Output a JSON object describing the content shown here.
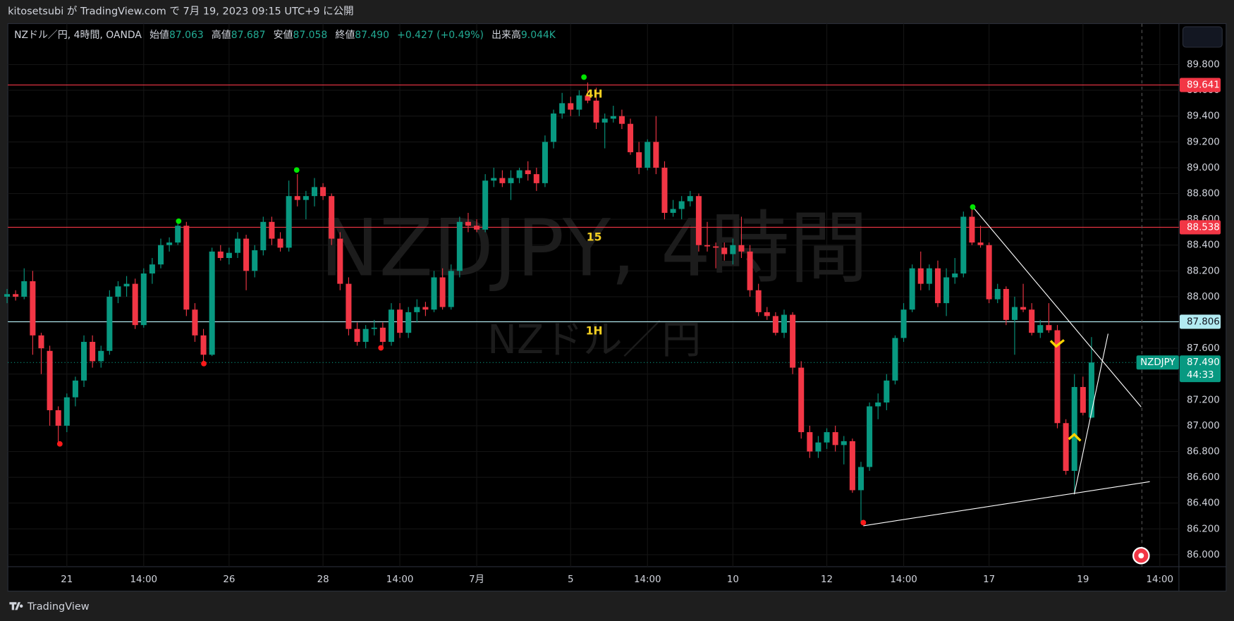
{
  "header": {
    "publisher": "kitosetsubi が TradingView.com で 7月 19, 2023 09:15 UTC+9 に公開"
  },
  "footer": {
    "brand": "TradingView"
  },
  "chart_data": {
    "type": "candlestick",
    "symbol_line": "NZドル／円, 4時間, OANDA",
    "ohlc_legend": [
      {
        "label": "始値",
        "value": "87.063"
      },
      {
        "label": "高値",
        "value": "87.687"
      },
      {
        "label": "安値",
        "value": "87.058"
      },
      {
        "label": "終値",
        "value": "87.490"
      }
    ],
    "change": "+0.427 (+0.49%)",
    "volume_label": "出来高",
    "volume": "9.044K",
    "watermark": "NZDJPY, 4時間",
    "watermark_sub": "NZドル／円",
    "annotations": [
      "4H",
      "15",
      "1H"
    ],
    "categories": [
      null,
      null,
      null,
      null,
      null,
      null,
      null,
      "21",
      null,
      null,
      null,
      null,
      null,
      null,
      null,
      null,
      "14:00",
      null,
      null,
      null,
      null,
      null,
      null,
      null,
      null,
      null,
      "26",
      null,
      null,
      null,
      null,
      null,
      null,
      null,
      null,
      null,
      null,
      "28",
      null,
      null,
      null,
      null,
      null,
      null,
      null,
      null,
      "14:00",
      null,
      null,
      null,
      null,
      null,
      null,
      null,
      null,
      "7月",
      null,
      null,
      null,
      null,
      null,
      null,
      null,
      null,
      null,
      null,
      "5",
      null,
      null,
      null,
      null,
      null,
      null,
      null,
      null,
      "14:00",
      null,
      null,
      null,
      null,
      null,
      null,
      null,
      null,
      null,
      "10",
      null,
      null,
      null,
      null,
      null,
      null,
      null,
      null,
      null,
      null,
      "12",
      null,
      null,
      null,
      null,
      null,
      null,
      null,
      null,
      "14:00",
      null,
      null,
      null,
      null,
      null,
      null,
      null,
      null,
      null,
      "17",
      null,
      null,
      null,
      null,
      null,
      null,
      null,
      null,
      null,
      null,
      "19",
      null,
      null,
      null,
      null,
      null,
      null,
      null,
      null,
      "14:00"
    ],
    "open": [
      88.0,
      88.02,
      88.0,
      88.12,
      87.7,
      87.58,
      87.12,
      87.0,
      87.22,
      87.35,
      87.65,
      87.5,
      87.58,
      88.0,
      88.08,
      88.1,
      87.78,
      88.18,
      88.25,
      88.4,
      88.42,
      88.55,
      87.9,
      87.7,
      87.55,
      88.35,
      88.3,
      88.34,
      88.45,
      88.2,
      88.36,
      88.58,
      88.45,
      88.38,
      88.78,
      88.75,
      88.78,
      88.85,
      88.78,
      88.45,
      88.1,
      87.75,
      87.65,
      87.75,
      87.76,
      87.65,
      87.9,
      87.72,
      87.88,
      87.92,
      87.9,
      88.15,
      87.92,
      88.2,
      88.58,
      88.55,
      88.52,
      88.9,
      88.92,
      88.88,
      88.92,
      88.98,
      88.95,
      88.88,
      89.2,
      89.42,
      89.5,
      89.45,
      89.56,
      89.52,
      89.35,
      89.38,
      89.4,
      89.34,
      89.12,
      89.0,
      89.2,
      89.0,
      88.65,
      88.68,
      88.74,
      88.78,
      88.4,
      88.39,
      88.38,
      88.33,
      88.4,
      88.35,
      88.05,
      87.88,
      87.85,
      87.72,
      87.86,
      87.45,
      86.95,
      86.8,
      86.87,
      86.95,
      86.85,
      86.88,
      86.5,
      86.68,
      87.15,
      87.18,
      87.35,
      87.68,
      87.9,
      88.22,
      88.1,
      88.22,
      87.95,
      88.15,
      88.18,
      88.62,
      88.42,
      88.4,
      87.98,
      88.06,
      87.82,
      87.92,
      87.9,
      87.72,
      87.78,
      87.74,
      87.02,
      86.65,
      87.3,
      87.063,
      null,
      null,
      null,
      null,
      null,
      null,
      null,
      null
    ],
    "high": [
      88.06,
      88.05,
      88.22,
      88.2,
      87.72,
      87.62,
      87.15,
      87.25,
      87.38,
      87.7,
      87.7,
      87.62,
      88.05,
      88.12,
      88.16,
      88.14,
      88.22,
      88.3,
      88.45,
      88.46,
      88.6,
      88.58,
      87.95,
      87.75,
      88.38,
      88.4,
      88.38,
      88.5,
      88.48,
      88.4,
      88.62,
      88.62,
      88.5,
      88.9,
      88.95,
      88.82,
      88.92,
      88.88,
      88.8,
      88.5,
      88.15,
      87.8,
      87.78,
      87.82,
      87.8,
      87.95,
      87.95,
      87.92,
      87.98,
      87.96,
      88.2,
      88.22,
      88.25,
      88.62,
      88.65,
      88.6,
      88.95,
      89.0,
      88.98,
      88.98,
      89.0,
      89.05,
      89.0,
      89.25,
      89.45,
      89.58,
      89.55,
      89.6,
      89.66,
      89.62,
      89.42,
      89.48,
      89.45,
      89.38,
      89.2,
      89.22,
      89.4,
      89.05,
      88.75,
      88.78,
      88.82,
      88.8,
      88.58,
      88.42,
      88.42,
      88.45,
      88.62,
      88.4,
      88.1,
      87.92,
      87.88,
      87.9,
      87.88,
      87.5,
      87.0,
      86.92,
      86.98,
      87.0,
      86.92,
      86.9,
      86.72,
      87.18,
      87.25,
      87.4,
      87.7,
      87.95,
      88.25,
      88.35,
      88.25,
      88.28,
      88.22,
      88.3,
      88.66,
      88.68,
      88.55,
      88.42,
      88.1,
      88.08,
      88.0,
      88.1,
      87.95,
      87.82,
      87.95,
      87.78,
      87.05,
      87.4,
      87.38,
      87.687,
      null,
      null,
      null,
      null,
      null,
      null,
      null,
      null
    ],
    "low": [
      87.95,
      87.97,
      87.98,
      87.55,
      87.4,
      87.0,
      86.86,
      86.95,
      87.15,
      87.3,
      87.45,
      87.45,
      87.55,
      87.95,
      88.0,
      87.75,
      87.76,
      88.1,
      88.22,
      88.35,
      88.4,
      87.85,
      87.65,
      87.48,
      87.54,
      88.28,
      88.25,
      88.3,
      88.05,
      88.15,
      88.32,
      88.4,
      88.35,
      88.35,
      88.7,
      88.6,
      88.7,
      88.75,
      88.4,
      88.05,
      87.7,
      87.62,
      87.6,
      87.7,
      87.6,
      87.62,
      87.68,
      87.68,
      87.8,
      87.85,
      87.88,
      87.9,
      87.9,
      88.15,
      88.5,
      88.5,
      88.5,
      88.85,
      88.85,
      88.75,
      88.88,
      88.9,
      88.82,
      88.85,
      89.15,
      89.38,
      89.4,
      89.4,
      89.5,
      89.3,
      89.15,
      89.35,
      89.3,
      89.1,
      88.95,
      88.98,
      88.95,
      88.6,
      88.62,
      88.6,
      88.7,
      88.35,
      88.35,
      88.22,
      88.28,
      88.25,
      88.3,
      88.0,
      87.85,
      87.82,
      87.7,
      87.68,
      87.4,
      86.9,
      86.75,
      86.75,
      86.82,
      86.8,
      86.7,
      86.48,
      86.24,
      86.65,
      87.05,
      87.12,
      87.32,
      87.65,
      87.88,
      88.05,
      88.05,
      87.92,
      87.85,
      88.1,
      88.15,
      88.4,
      88.38,
      87.95,
      87.95,
      87.78,
      87.55,
      87.88,
      87.7,
      87.68,
      87.72,
      86.98,
      86.62,
      86.48,
      87.08,
      87.058,
      null,
      null,
      null,
      null,
      null,
      null,
      null,
      null
    ],
    "close": [
      88.02,
      88.0,
      88.12,
      87.7,
      87.6,
      87.12,
      87.0,
      87.22,
      87.35,
      87.65,
      87.5,
      87.58,
      88.0,
      88.08,
      88.1,
      87.78,
      88.18,
      88.25,
      88.4,
      88.42,
      88.55,
      87.9,
      87.7,
      87.55,
      88.35,
      88.3,
      88.34,
      88.45,
      88.2,
      88.36,
      88.58,
      88.45,
      88.38,
      88.78,
      88.75,
      88.78,
      88.85,
      88.78,
      88.45,
      88.1,
      87.75,
      87.65,
      87.75,
      87.76,
      87.65,
      87.9,
      87.72,
      87.88,
      87.92,
      87.9,
      88.15,
      87.92,
      88.2,
      88.58,
      88.55,
      88.52,
      88.9,
      88.92,
      88.88,
      88.92,
      88.98,
      88.95,
      88.88,
      89.2,
      89.42,
      89.5,
      89.45,
      89.56,
      89.52,
      89.35,
      89.38,
      89.4,
      89.34,
      89.12,
      89.0,
      89.2,
      89.0,
      88.65,
      88.68,
      88.74,
      88.78,
      88.4,
      88.39,
      88.38,
      88.33,
      88.4,
      88.35,
      88.05,
      87.88,
      87.85,
      87.72,
      87.86,
      87.45,
      86.95,
      86.8,
      86.87,
      86.95,
      86.85,
      86.88,
      86.5,
      86.68,
      87.15,
      87.18,
      87.35,
      87.68,
      87.9,
      88.22,
      88.1,
      88.22,
      87.95,
      88.15,
      88.18,
      88.62,
      88.42,
      88.4,
      87.98,
      88.06,
      87.82,
      87.92,
      87.9,
      87.72,
      87.78,
      87.74,
      87.02,
      86.65,
      87.3,
      87.1,
      87.49,
      null,
      null,
      null,
      null,
      null,
      null,
      null,
      null
    ],
    "up_color": "#089981",
    "down_color": "#f23645",
    "ylim": [
      85.907,
      90.117
    ],
    "yticks": [
      {
        "value": 86,
        "label": "86.000"
      },
      {
        "value": 86.2,
        "label": "86.200"
      },
      {
        "value": 86.4,
        "label": "86.400"
      },
      {
        "value": 86.6,
        "label": "86.600"
      },
      {
        "value": 86.8,
        "label": "86.800"
      },
      {
        "value": 87,
        "label": "87.000"
      },
      {
        "value": 87.2,
        "label": "87.200"
      },
      {
        "value": 87.4,
        "label": "87.400"
      },
      {
        "value": 87.6,
        "label": "87.600"
      },
      {
        "value": 87.8,
        "label": "87.800"
      },
      {
        "value": 88,
        "label": "88.000"
      },
      {
        "value": 88.2,
        "label": "88.200"
      },
      {
        "value": 88.4,
        "label": "88.400"
      },
      {
        "value": 88.6,
        "label": "88.600"
      },
      {
        "value": 88.8,
        "label": "88.800"
      },
      {
        "value": 89,
        "label": "89.000"
      },
      {
        "value": 89.2,
        "label": "89.200"
      },
      {
        "value": 89.4,
        "label": "89.400"
      },
      {
        "value": 89.6,
        "label": "89.600"
      },
      {
        "value": 89.8,
        "label": "89.800"
      }
    ],
    "levels": [
      {
        "value": 89.641,
        "color": "#f23645"
      },
      {
        "value": 88.538,
        "color": "#f23645"
      },
      {
        "value": 87.806,
        "color": "#b2ebf2"
      }
    ],
    "last_price": {
      "value": 87.49,
      "label": "87.490"
    },
    "last_symbol": "NZDJPY",
    "countdown": "44:33",
    "grid": true
  }
}
